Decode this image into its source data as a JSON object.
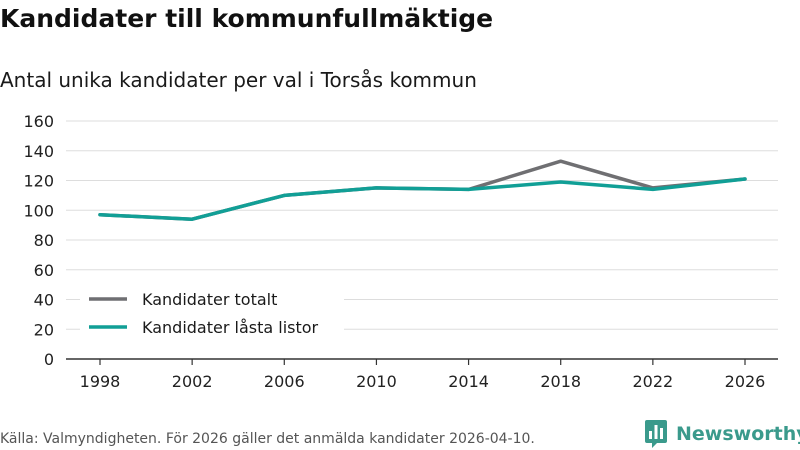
{
  "header": {
    "title": "Kandidater till kommunfullmäktige",
    "subtitle": "Antal unika kandidater per val i Torsås kommun"
  },
  "chart_data": {
    "type": "line",
    "title": "Kandidater till kommunfullmäktige",
    "subtitle": "Antal unika kandidater per val i Torsås kommun",
    "xlabel": "",
    "ylabel": "",
    "x": [
      1998,
      2002,
      2006,
      2010,
      2014,
      2018,
      2022,
      2026
    ],
    "ylim": [
      0,
      160
    ],
    "yticks": [
      0,
      20,
      40,
      60,
      80,
      100,
      120,
      140,
      160
    ],
    "grid": true,
    "legend_position": "bottom-left",
    "series": [
      {
        "name": "Kandidater totalt",
        "color": "#6f6f72",
        "values": [
          97,
          94,
          110,
          115,
          114,
          133,
          115,
          121
        ]
      },
      {
        "name": "Kandidater låsta listor",
        "color": "#119f96",
        "values": [
          97,
          94,
          110,
          115,
          114,
          119,
          114,
          121
        ]
      }
    ]
  },
  "footer": {
    "source": "Källa: Valmyndigheten. För 2026 gäller det anmälda kandidater 2026-04-10.",
    "brand": "Newsworthy",
    "brand_color": "#3a9a8c"
  }
}
